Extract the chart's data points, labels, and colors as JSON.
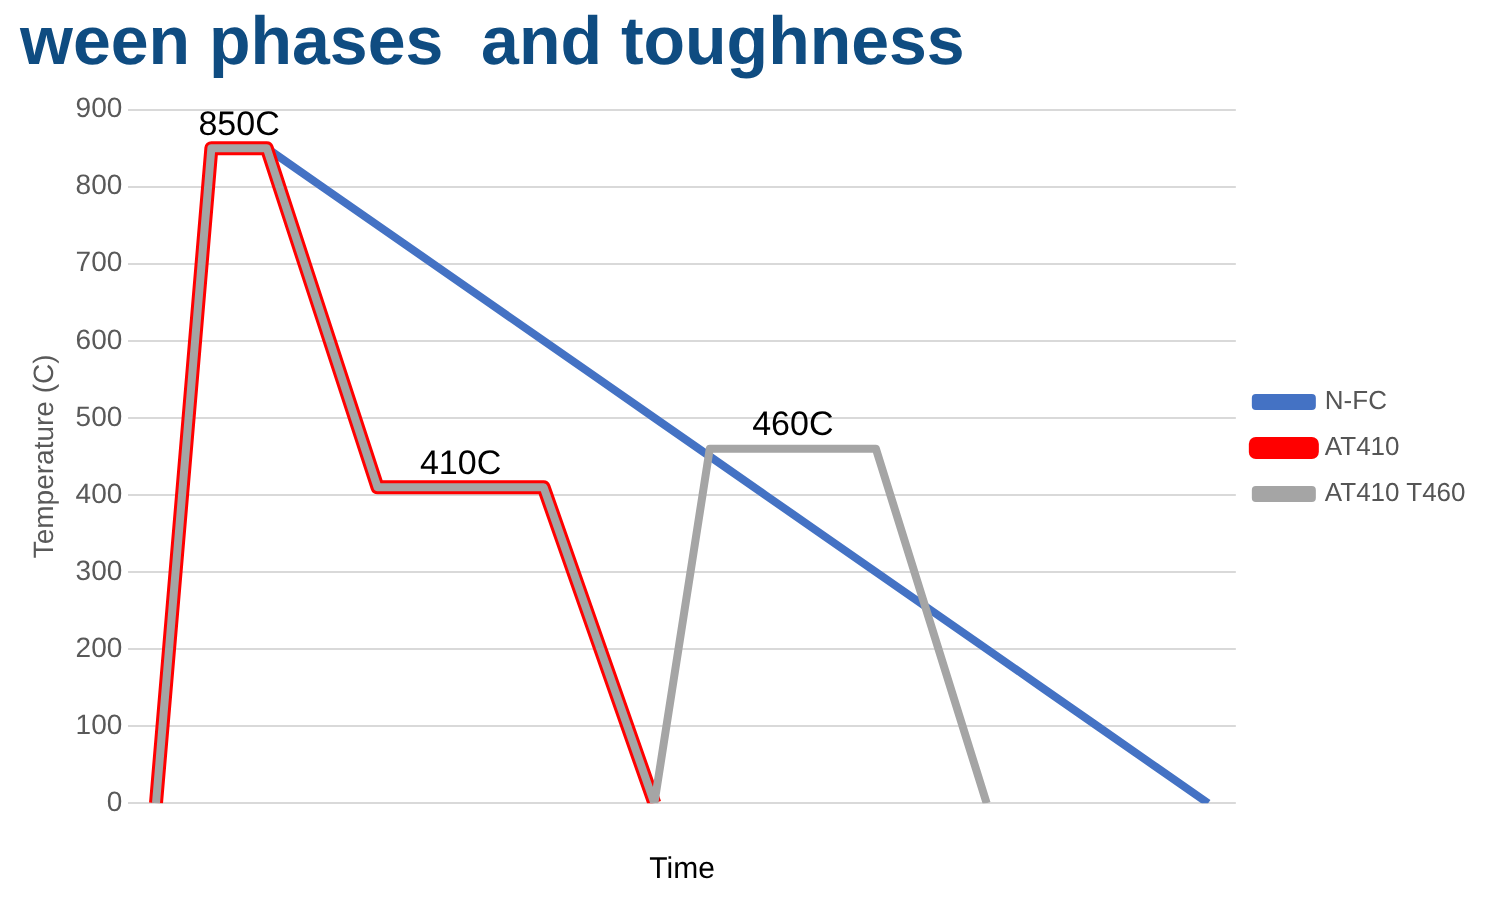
{
  "chart_data": {
    "type": "line",
    "title": "ween phases  and toughness",
    "xlabel": "Time",
    "ylabel": "Temperature (C)",
    "categories": [
      null,
      null,
      null,
      null,
      null,
      null,
      null,
      null,
      null,
      null,
      null,
      null,
      null,
      null,
      null,
      null,
      null,
      null,
      null,
      null
    ],
    "ylim": [
      0,
      900
    ],
    "yticks": [
      0,
      100,
      200,
      300,
      400,
      500,
      600,
      700,
      800,
      900
    ],
    "grid": "y",
    "legend": "right",
    "marker": "none",
    "line_style": "solid",
    "series": [
      {
        "name": "N-FC",
        "color": "#4472c4",
        "values": [
          null,
          null,
          850,
          800,
          750,
          700,
          650,
          600,
          550,
          500,
          450,
          400,
          350,
          300,
          250,
          200,
          150,
          100,
          50,
          0
        ]
      },
      {
        "name": "AT410",
        "color": "#ff0000",
        "values": [
          0,
          850,
          850,
          630,
          410,
          410,
          410,
          410,
          205,
          0,
          null,
          null,
          null,
          null,
          null,
          null,
          null,
          null,
          null,
          null
        ]
      },
      {
        "name": "AT410 T460",
        "color": "#a5a5a5",
        "values": [
          0,
          850,
          850,
          630,
          410,
          410,
          410,
          410,
          205,
          0,
          460,
          460,
          460,
          460,
          230,
          0,
          null,
          null,
          null,
          null
        ]
      }
    ],
    "annotations": [
      {
        "text": "850C",
        "y": 850
      },
      {
        "text": "410C",
        "y": 410
      },
      {
        "text": "460C",
        "y": 460
      }
    ]
  }
}
